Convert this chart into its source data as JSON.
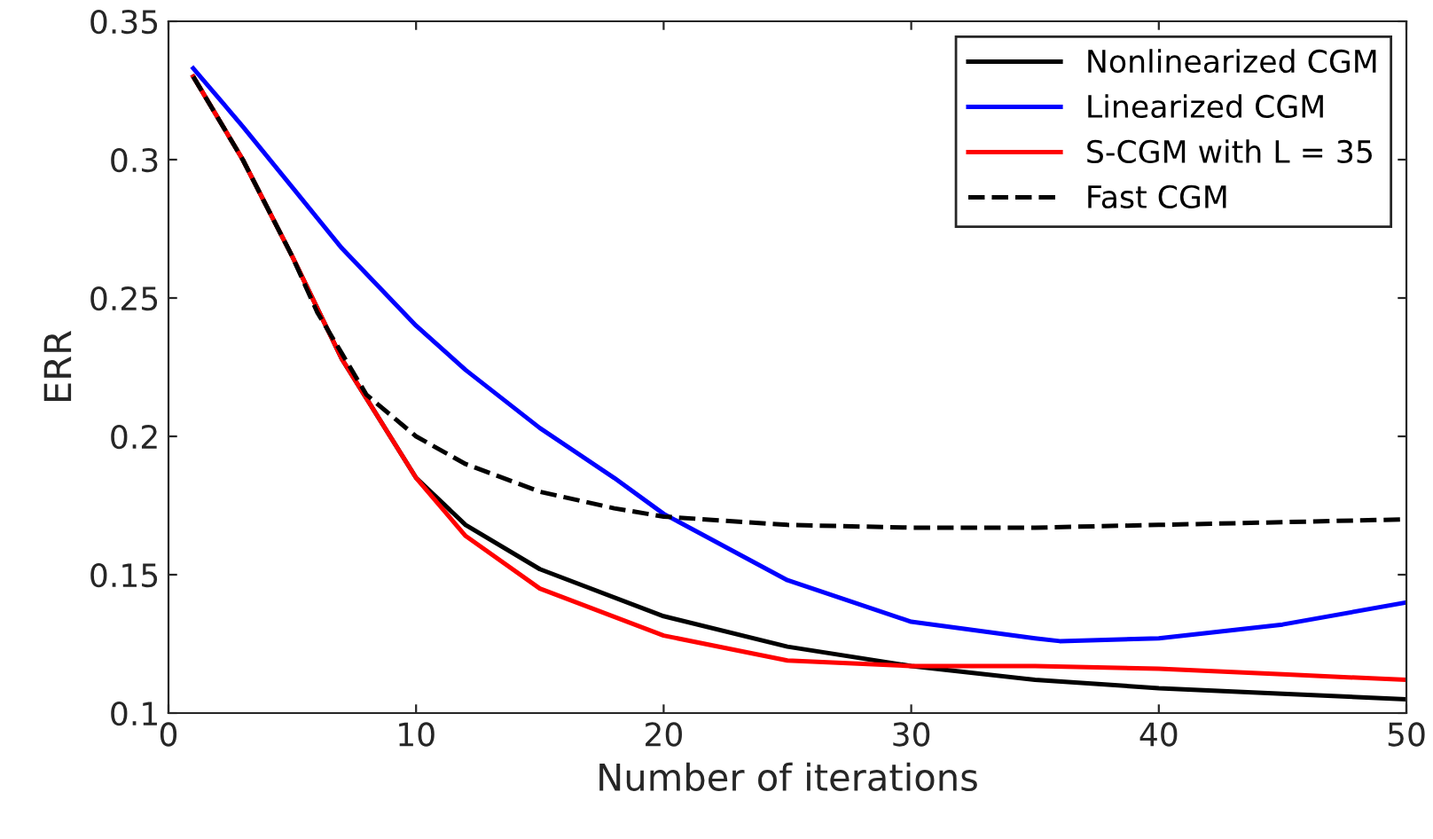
{
  "chart_data": {
    "type": "line",
    "xlabel": "Number of iterations",
    "ylabel": "ERR",
    "xlim": [
      0,
      50
    ],
    "ylim": [
      0.1,
      0.35
    ],
    "xticks": [
      0,
      10,
      20,
      30,
      40,
      50
    ],
    "yticks": [
      0.1,
      0.15,
      0.2,
      0.25,
      0.3,
      0.35
    ],
    "grid": false,
    "legend": "top right",
    "marker": "none",
    "series": [
      {
        "name": "Nonlinearized CGM",
        "color": "#000000",
        "line_style": "solid",
        "x": [
          1,
          3,
          5,
          7,
          10,
          12,
          15,
          20,
          25,
          30,
          35,
          40,
          45,
          50
        ],
        "values": [
          0.33,
          0.3,
          0.265,
          0.228,
          0.185,
          0.168,
          0.152,
          0.135,
          0.124,
          0.117,
          0.112,
          0.109,
          0.107,
          0.105
        ]
      },
      {
        "name": "Linearized CGM",
        "color": "#0000ff",
        "line_style": "solid",
        "x": [
          1,
          3,
          5,
          7,
          10,
          12,
          15,
          18,
          20,
          25,
          30,
          35,
          36,
          40,
          45,
          50
        ],
        "values": [
          0.333,
          0.312,
          0.29,
          0.268,
          0.24,
          0.224,
          0.203,
          0.185,
          0.172,
          0.148,
          0.133,
          0.127,
          0.126,
          0.127,
          0.132,
          0.14
        ]
      },
      {
        "name": "S-CGM with L = 35",
        "color": "#ff0000",
        "line_style": "solid",
        "x": [
          1,
          3,
          5,
          7,
          10,
          12,
          15,
          20,
          25,
          30,
          35,
          40,
          45,
          50
        ],
        "values": [
          0.33,
          0.3,
          0.265,
          0.228,
          0.185,
          0.164,
          0.145,
          0.128,
          0.119,
          0.117,
          0.117,
          0.116,
          0.114,
          0.112
        ]
      },
      {
        "name": "Fast CGM",
        "color": "#000000",
        "line_style": "dashed",
        "x": [
          1,
          3,
          5,
          6,
          7,
          8,
          10,
          12,
          15,
          18,
          20,
          25,
          30,
          35,
          40,
          45,
          50
        ],
        "values": [
          0.33,
          0.3,
          0.265,
          0.245,
          0.23,
          0.215,
          0.2,
          0.19,
          0.18,
          0.174,
          0.171,
          0.168,
          0.167,
          0.167,
          0.168,
          0.169,
          0.17
        ]
      }
    ]
  }
}
